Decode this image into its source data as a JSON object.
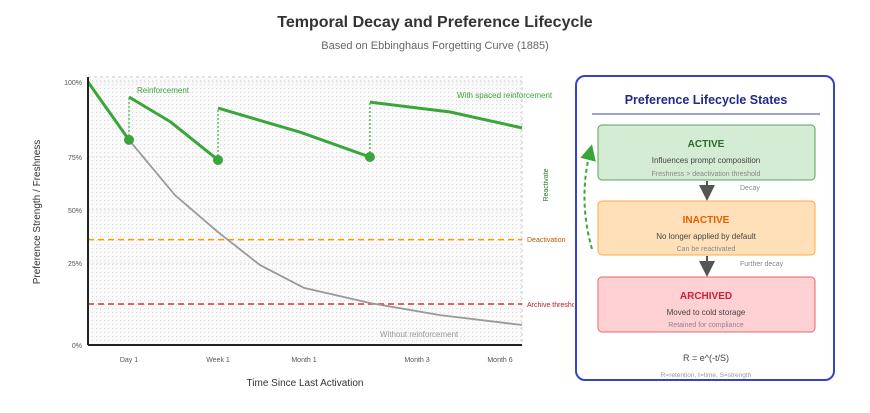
{
  "title": "Temporal Decay and Preference Lifecycle",
  "subtitle": "Based on Ebbinghaus Forgetting Curve (1885)",
  "chart_data": {
    "type": "line",
    "xlabel": "Time Since Last Activation",
    "ylabel": "Preference Strength / Freshness",
    "x_ticks": [
      {
        "label": "Day 1",
        "value": 1
      },
      {
        "label": "Week 1",
        "value": 7
      },
      {
        "label": "Month 1",
        "value": 30
      },
      {
        "label": "Month 3",
        "value": 90
      },
      {
        "label": "Month 6",
        "value": 180
      }
    ],
    "y_ticks": [
      {
        "label": "100%",
        "value": 100
      },
      {
        "label": "75%",
        "value": 75
      },
      {
        "label": "50%",
        "value": 50
      },
      {
        "label": "25%",
        "value": 25
      },
      {
        "label": "0%",
        "value": 0
      }
    ],
    "xlim": [
      0,
      200
    ],
    "ylim": [
      0,
      100
    ],
    "grid": true,
    "series": [
      {
        "name": "Without reinforcement",
        "color": "#999999",
        "points": [
          [
            0,
            100
          ],
          [
            1,
            80.7
          ],
          [
            4.1,
            57
          ],
          [
            7,
            39.6
          ],
          [
            18.2,
            24.4
          ],
          [
            30,
            17.4
          ],
          [
            65,
            12.8
          ],
          [
            115,
            9.1
          ],
          [
            200,
            6.1
          ]
        ]
      },
      {
        "name": "With spaced reinforcement",
        "color": "#3aa63a",
        "segments": [
          [
            [
              0,
              100
            ],
            [
              1,
              80.7
            ]
          ],
          [
            [
              1,
              95
            ],
            [
              3.8,
              86.7
            ],
            [
              7,
              73.6
            ]
          ],
          [
            [
              7,
              91.3
            ],
            [
              28.9,
              83.3
            ],
            [
              65,
              75
            ]
          ],
          [
            [
              65,
              93.3
            ],
            [
              126,
              90
            ],
            [
              200,
              84.7
            ]
          ]
        ],
        "reinforcement_points": [
          [
            1,
            80.7
          ],
          [
            7,
            73.6
          ],
          [
            65,
            75
          ]
        ]
      }
    ],
    "thresholds": [
      {
        "name": "Deactivation",
        "value": 36,
        "color": "#ff9900"
      },
      {
        "name": "Archive threshold",
        "value": 12.5,
        "color": "#e62e2e"
      }
    ],
    "annotations": {
      "reinforcement": "Reinforcement",
      "with": "With spaced reinforcement",
      "without": "Without reinforcement",
      "reactivate": "Reactivate"
    }
  },
  "lifecycle": {
    "title": "Preference Lifecycle States",
    "states": [
      {
        "name": "ACTIVE",
        "desc": "Influences prompt composition",
        "note": "Freshness > deactivation threshold"
      },
      {
        "name": "INACTIVE",
        "desc": "No longer applied by default",
        "note": "Can be reactivated"
      },
      {
        "name": "ARCHIVED",
        "desc": "Moved to cold storage",
        "note": "Retained for compliance"
      }
    ],
    "transitions": [
      "Decay",
      "Further decay"
    ],
    "formula": "R = e^(-t/S)",
    "formula_legend": "R=retention, t=time, S=strength"
  }
}
